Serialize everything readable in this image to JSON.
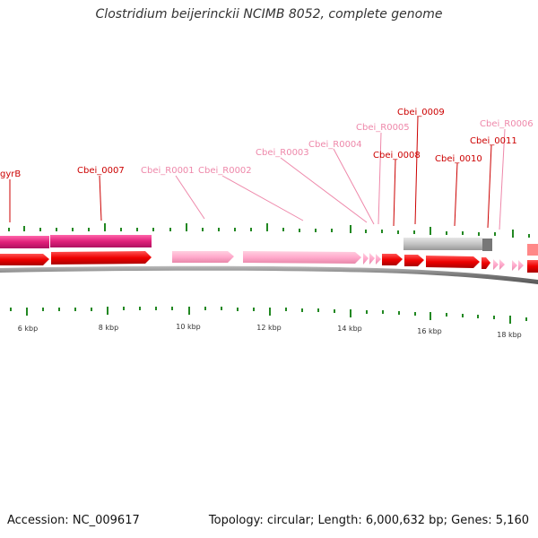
{
  "title": "Clostridium beijerinckii NCIMB 8052, complete genome",
  "footer": {
    "accession": "Accession: NC_009617",
    "summary": "Topology: circular; Length: 6,000,632 bp; Genes: 5,160"
  },
  "genes": [
    {
      "id": "gyrB",
      "color": "red"
    },
    {
      "id": "Cbei_0007",
      "color": "red"
    },
    {
      "id": "Cbei_R0001",
      "color": "pink"
    },
    {
      "id": "Cbei_R0002",
      "color": "pink"
    },
    {
      "id": "Cbei_R0003",
      "color": "pink"
    },
    {
      "id": "Cbei_R0004",
      "color": "pink"
    },
    {
      "id": "Cbei_R0005",
      "color": "pink"
    },
    {
      "id": "Cbei_0008",
      "color": "red"
    },
    {
      "id": "Cbei_0009",
      "color": "red"
    },
    {
      "id": "Cbei_0010",
      "color": "red"
    },
    {
      "id": "Cbei_0011",
      "color": "red"
    },
    {
      "id": "Cbei_R0006",
      "color": "pink"
    }
  ],
  "scale_labels": [
    "6 kbp",
    "8 kbp",
    "10 kbp",
    "12 kbp",
    "14 kbp",
    "16 kbp",
    "18 kbp"
  ],
  "colors": {
    "gene_red": "#ee0000",
    "rna_pink": "#ffaacc",
    "gene_magenta": "#e0207a",
    "gray_feature": "#bbbbbb",
    "tick_green": "#228822",
    "backbone": "#777777"
  }
}
